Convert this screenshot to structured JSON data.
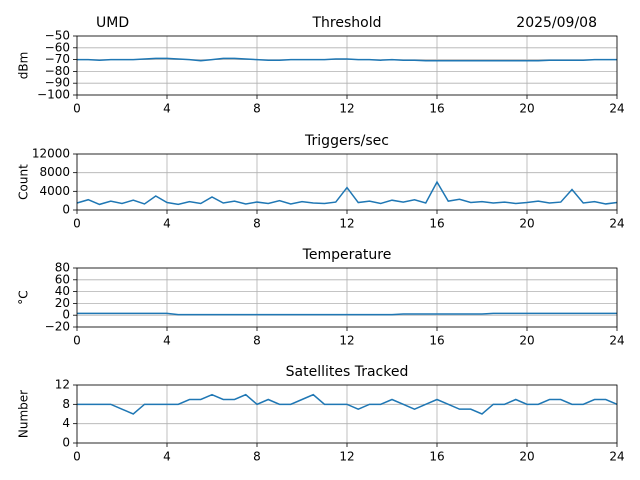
{
  "chart_data": [
    {
      "type": "line",
      "title": "Threshold",
      "left_text": "UMD",
      "right_text": "2025/09/08",
      "ylabel": "dBm",
      "color": "#1f77b4",
      "grid": true,
      "xlim": [
        0,
        24
      ],
      "xticks": [
        0,
        4,
        8,
        12,
        16,
        20,
        24
      ],
      "ylim": [
        -100,
        -50
      ],
      "yticks": [
        {
          "value": -100,
          "label": "−100"
        },
        {
          "value": -90,
          "label": "−90"
        },
        {
          "value": -80,
          "label": "−80"
        },
        {
          "value": -70,
          "label": "−70"
        },
        {
          "value": -60,
          "label": "−60"
        },
        {
          "value": -50,
          "label": "−50"
        }
      ],
      "x": [
        0,
        0.5,
        1,
        1.5,
        2,
        2.5,
        3,
        3.5,
        4,
        4.5,
        5,
        5.5,
        6,
        6.5,
        7,
        7.5,
        8,
        8.5,
        9,
        9.5,
        10,
        10.5,
        11,
        11.5,
        12,
        12.5,
        13,
        13.5,
        14,
        14.5,
        15,
        15.5,
        16,
        16.5,
        17,
        17.5,
        18,
        18.5,
        19,
        19.5,
        20,
        20.5,
        21,
        21.5,
        22,
        22.5,
        23,
        23.5,
        24
      ],
      "values": [
        -70,
        -70,
        -70.5,
        -70,
        -70,
        -70,
        -69.5,
        -69,
        -69,
        -69.5,
        -70,
        -71,
        -70,
        -69,
        -69,
        -69.5,
        -70,
        -70.5,
        -70.5,
        -70,
        -70,
        -70,
        -70,
        -69.5,
        -69.5,
        -70,
        -70,
        -70.5,
        -70,
        -70.5,
        -70.5,
        -71,
        -71,
        -71,
        -71,
        -71,
        -71,
        -71,
        -71,
        -71,
        -71,
        -71,
        -70.5,
        -70.5,
        -70.5,
        -70.5,
        -70,
        -70,
        -70
      ]
    },
    {
      "type": "line",
      "title": "Triggers/sec",
      "ylabel": "Count",
      "color": "#1f77b4",
      "grid": true,
      "xlim": [
        0,
        24
      ],
      "xticks": [
        0,
        4,
        8,
        12,
        16,
        20,
        24
      ],
      "ylim": [
        0,
        12000
      ],
      "yticks": [
        0,
        4000,
        8000,
        12000
      ],
      "x": [
        0,
        0.5,
        1,
        1.5,
        2,
        2.5,
        3,
        3.5,
        4,
        4.5,
        5,
        5.5,
        6,
        6.5,
        7,
        7.5,
        8,
        8.5,
        9,
        9.5,
        10,
        10.5,
        11,
        11.5,
        12,
        12.5,
        13,
        13.5,
        14,
        14.5,
        15,
        15.5,
        16,
        16.5,
        17,
        17.5,
        18,
        18.5,
        19,
        19.5,
        20,
        20.5,
        21,
        21.5,
        22,
        22.5,
        23,
        23.5,
        24
      ],
      "values": [
        1500,
        2200,
        1200,
        1900,
        1400,
        2100,
        1300,
        3000,
        1600,
        1200,
        1800,
        1400,
        2800,
        1500,
        1900,
        1300,
        1700,
        1400,
        2000,
        1300,
        1800,
        1500,
        1400,
        1700,
        4800,
        1600,
        1900,
        1400,
        2100,
        1700,
        2200,
        1500,
        6000,
        1900,
        2300,
        1600,
        1800,
        1500,
        1700,
        1400,
        1600,
        1900,
        1500,
        1700,
        4400,
        1500,
        1800,
        1300,
        1600
      ]
    },
    {
      "type": "line",
      "title": "Temperature",
      "ylabel": "°C",
      "color": "#1f77b4",
      "grid": true,
      "xlim": [
        0,
        24
      ],
      "xticks": [
        0,
        4,
        8,
        12,
        16,
        20,
        24
      ],
      "ylim": [
        -20,
        80
      ],
      "yticks": [
        {
          "value": -20,
          "label": "−20"
        },
        0,
        20,
        40,
        60,
        80
      ],
      "x": [
        0,
        0.5,
        1,
        1.5,
        2,
        2.5,
        3,
        3.5,
        4,
        4.5,
        5,
        5.5,
        6,
        6.5,
        7,
        7.5,
        8,
        8.5,
        9,
        9.5,
        10,
        10.5,
        11,
        11.5,
        12,
        12.5,
        13,
        13.5,
        14,
        14.5,
        15,
        15.5,
        16,
        16.5,
        17,
        17.5,
        18,
        18.5,
        19,
        19.5,
        20,
        20.5,
        21,
        21.5,
        22,
        22.5,
        23,
        23.5,
        24
      ],
      "values": [
        3,
        3,
        3,
        3,
        3,
        3,
        3,
        3,
        3,
        1,
        1,
        1,
        1,
        1,
        1,
        1,
        1,
        1,
        1,
        1,
        1,
        1,
        1,
        1,
        1,
        1,
        1,
        1,
        1,
        2,
        2,
        2,
        2,
        2,
        2,
        2,
        2,
        3,
        3,
        3,
        3,
        3,
        3,
        3,
        3,
        3,
        3,
        3,
        3
      ]
    },
    {
      "type": "line",
      "title": "Satellites Tracked",
      "ylabel": "Number",
      "color": "#1f77b4",
      "grid": true,
      "xlim": [
        0,
        24
      ],
      "xticks": [
        0,
        4,
        8,
        12,
        16,
        20,
        24
      ],
      "ylim": [
        0,
        12
      ],
      "yticks": [
        0,
        4,
        8,
        12
      ],
      "x": [
        0,
        0.5,
        1,
        1.5,
        2,
        2.5,
        3,
        3.5,
        4,
        4.5,
        5,
        5.5,
        6,
        6.5,
        7,
        7.5,
        8,
        8.5,
        9,
        9.5,
        10,
        10.5,
        11,
        11.5,
        12,
        12.5,
        13,
        13.5,
        14,
        14.5,
        15,
        15.5,
        16,
        16.5,
        17,
        17.5,
        18,
        18.5,
        19,
        19.5,
        20,
        20.5,
        21,
        21.5,
        22,
        22.5,
        23,
        23.5,
        24
      ],
      "values": [
        8,
        8,
        8,
        8,
        7,
        6,
        8,
        8,
        8,
        8,
        9,
        9,
        10,
        9,
        9,
        10,
        8,
        9,
        8,
        8,
        9,
        10,
        8,
        8,
        8,
        7,
        8,
        8,
        9,
        8,
        7,
        8,
        9,
        8,
        7,
        7,
        6,
        8,
        8,
        9,
        8,
        8,
        9,
        9,
        8,
        8,
        9,
        9,
        8
      ]
    }
  ]
}
